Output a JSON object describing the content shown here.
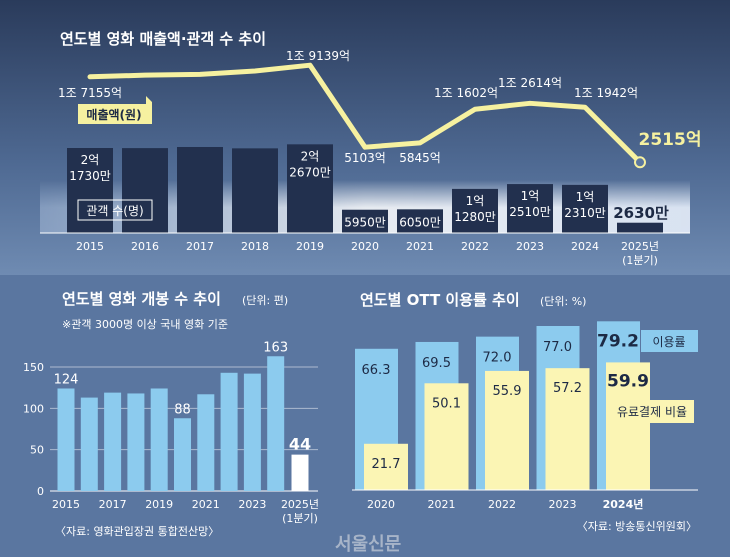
{
  "colors": {
    "top_bg": "#2c3e5e",
    "bottom_bg": "#5a76a0",
    "audience_bar": "#22304e",
    "revenue_line": "#f6f1a0",
    "release_bar": "#8ccbee",
    "release_last": "#ffffff",
    "ott_usage": "#8ccbee",
    "ott_paid": "#fbf5b4"
  },
  "watermark": "서울신문",
  "chart_data": [
    {
      "type": "bar+line",
      "title": "연도별 영화 매출액·관객 수 추이",
      "categories": [
        "2015",
        "2016",
        "2017",
        "2018",
        "2019",
        "2020",
        "2021",
        "2022",
        "2023",
        "2024",
        "2025년 (1분기)"
      ],
      "series": [
        {
          "name": "매출액(원)",
          "unit": "억",
          "type": "line",
          "values": [
            17155,
            17432,
            17566,
            18140,
            19139,
            5103,
            5845,
            11602,
            12614,
            11942,
            2515
          ],
          "labels": [
            "1조 7155억",
            "",
            "",
            "",
            "1조 9139억",
            "5103억",
            "5845억",
            "1조 1602억",
            "1조 2614억",
            "1조 1942억",
            "2515억"
          ]
        },
        {
          "name": "관객 수(명)",
          "unit": "만",
          "type": "bar",
          "values": [
            21730,
            21702,
            21987,
            21639,
            22670,
            5950,
            6050,
            11280,
            12510,
            12310,
            2630
          ],
          "labels": [
            "2억 1730만",
            "",
            "",
            "",
            "2억 2670만",
            "5950만",
            "6050만",
            "1억 1280만",
            "1억 2510만",
            "1억 2310만",
            "2630만"
          ]
        }
      ]
    },
    {
      "type": "bar",
      "title": "연도별 영화 개봉 수 추이",
      "unit_note": "(단위: 편)",
      "subtitle": "※관객 3000명 이상 국내 영화 기준",
      "categories": [
        "2015",
        "2016",
        "2017",
        "2018",
        "2019",
        "2020",
        "2021",
        "2022",
        "2023",
        "2024",
        "2025년 (1분기)"
      ],
      "tick_labels": [
        "2015",
        "",
        "2017",
        "",
        "2019",
        "",
        "2021",
        "",
        "2023",
        "",
        "2025년 (1분기)"
      ],
      "values": [
        124,
        113,
        119,
        118,
        124,
        88,
        117,
        143,
        142,
        163,
        44
      ],
      "data_labels": [
        "124",
        "",
        "",
        "",
        "",
        "88",
        "",
        "",
        "",
        "163",
        "44"
      ],
      "yticks": [
        0,
        50,
        100,
        150
      ],
      "ylim": [
        0,
        170
      ],
      "grid": true,
      "source": "〈자료: 영화관입장권 통합전산망〉"
    },
    {
      "type": "bar",
      "title": "연도별 OTT 이용률 추이",
      "unit_note": "(단위: %)",
      "categories": [
        "2020",
        "2021",
        "2022",
        "2023",
        "2024년"
      ],
      "series": [
        {
          "name": "이용률",
          "values": [
            66.3,
            69.5,
            72.0,
            77.0,
            79.2
          ],
          "labels": [
            "66.3",
            "69.5",
            "72.0",
            "77.0",
            "79.2"
          ]
        },
        {
          "name": "유료결제 비율",
          "values": [
            21.7,
            50.1,
            55.9,
            57.2,
            59.9
          ],
          "labels": [
            "21.7",
            "50.1",
            "55.9",
            "57.2",
            "59.9"
          ]
        }
      ],
      "source": "〈자료: 방송통신위원회〉"
    }
  ]
}
